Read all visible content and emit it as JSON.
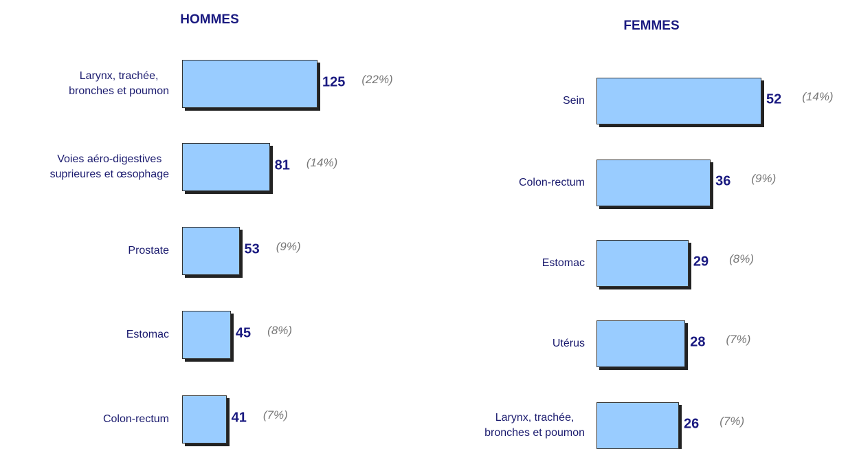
{
  "chart_data": [
    {
      "type": "bar",
      "orientation": "horizontal",
      "title": "HOMMES",
      "categories": [
        "Larynx, trachée,\nbronches et poumon",
        "Voies aéro-digestives\nsuprieures et œsophage",
        "Prostate",
        "Estomac",
        "Colon-rectum"
      ],
      "values": [
        125,
        81,
        53,
        45,
        41
      ],
      "share_labels": [
        "(22%)",
        "(14%)",
        "(9%)",
        "(8%)",
        "(7%)"
      ],
      "color": "#99ccff"
    },
    {
      "type": "bar",
      "orientation": "horizontal",
      "title": "FEMMES",
      "categories": [
        "Sein",
        "Colon-rectum",
        "Estomac",
        "Utérus",
        "Larynx, trachée,\nbronches et poumon"
      ],
      "values": [
        52,
        36,
        29,
        28,
        26
      ],
      "share_labels": [
        "(14%)",
        "(9%)",
        "(8%)",
        "(7%)",
        "(7%)"
      ],
      "color": "#99ccff"
    }
  ]
}
